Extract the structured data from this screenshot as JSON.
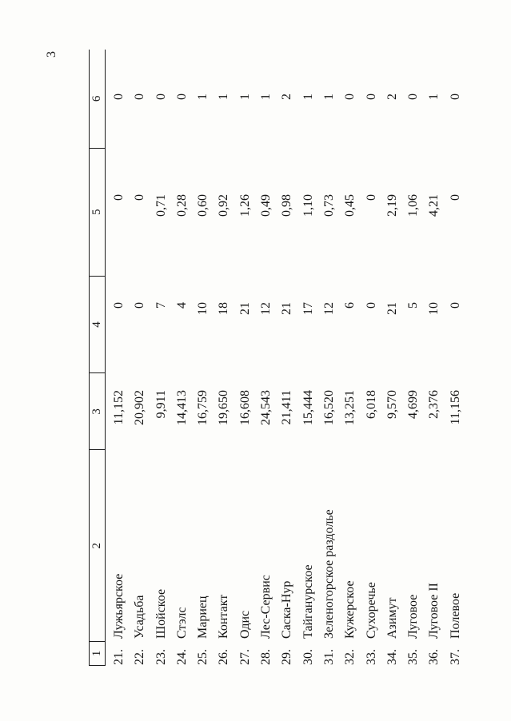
{
  "page": {
    "number": "3",
    "ink_color": "#161616",
    "paper_color": "#fdfdfb"
  },
  "table": {
    "headers": [
      "1",
      "2",
      "3",
      "4",
      "5",
      "6"
    ],
    "rows": [
      {
        "num": "21.",
        "name": "Лужьярское",
        "col3": "11,152",
        "col4": "0",
        "col5": "0",
        "col6": "0"
      },
      {
        "num": "22.",
        "name": "Усадьба",
        "col3": "20,902",
        "col4": "0",
        "col5": "0",
        "col6": "0"
      },
      {
        "num": "23.",
        "name": "Шойское",
        "col3": "9,911",
        "col4": "7",
        "col5": "0,71",
        "col6": "0"
      },
      {
        "num": "24.",
        "name": "Стэлс",
        "col3": "14,413",
        "col4": "4",
        "col5": "0,28",
        "col6": "0"
      },
      {
        "num": "25.",
        "name": "Мариец",
        "col3": "16,759",
        "col4": "10",
        "col5": "0,60",
        "col6": "1"
      },
      {
        "num": "26.",
        "name": "Контакт",
        "col3": "19,650",
        "col4": "18",
        "col5": "0,92",
        "col6": "1"
      },
      {
        "num": "27.",
        "name": "Одис",
        "col3": "16,608",
        "col4": "21",
        "col5": "1,26",
        "col6": "1"
      },
      {
        "num": "28.",
        "name": "Лес-Сервис",
        "col3": "24,543",
        "col4": "12",
        "col5": "0,49",
        "col6": "1"
      },
      {
        "num": "29.",
        "name": "Саска-Нур",
        "col3": "21,411",
        "col4": "21",
        "col5": "0,98",
        "col6": "2"
      },
      {
        "num": "30.",
        "name": "Тайганурское",
        "col3": "15,444",
        "col4": "17",
        "col5": "1,10",
        "col6": "1"
      },
      {
        "num": "31.",
        "name": "Зеленогорское раздолье",
        "col3": "16,520",
        "col4": "12",
        "col5": "0,73",
        "col6": "1"
      },
      {
        "num": "32.",
        "name": "Кужерское",
        "col3": "13,251",
        "col4": "6",
        "col5": "0,45",
        "col6": "0"
      },
      {
        "num": "33.",
        "name": "Сухоречье",
        "col3": "6,018",
        "col4": "0",
        "col5": "0",
        "col6": "0"
      },
      {
        "num": "34.",
        "name": "Азимут",
        "col3": "9,570",
        "col4": "21",
        "col5": "2,19",
        "col6": "2"
      },
      {
        "num": "35.",
        "name": "Луговое",
        "col3": "4,699",
        "col4": "5",
        "col5": "1,06",
        "col6": "0"
      },
      {
        "num": "36.",
        "name": "Луговое II",
        "col3": "2,376",
        "col4": "10",
        "col5": "4,21",
        "col6": "1"
      },
      {
        "num": "37.",
        "name": "Полевое",
        "col3": "11,156",
        "col4": "0",
        "col5": "0",
        "col6": "0"
      }
    ]
  }
}
